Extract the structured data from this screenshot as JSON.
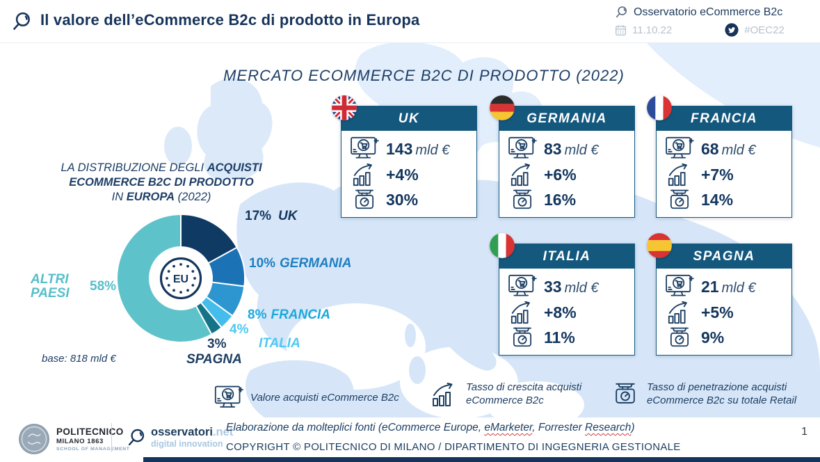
{
  "header": {
    "title": "Il valore dell’eCommerce B2c di prodotto in Europa",
    "brand": "Osservatorio eCommerce B2c",
    "date": "11.10.22",
    "hashtag": "#OEC22"
  },
  "main_title": "MERCATO ECOMMERCE B2C DI PRODOTTO (2022)",
  "distribution": {
    "title_l1_a": "LA DISTRIBUZIONE DEGLI ",
    "title_l1_b": "ACQUISTI",
    "title_l2": "ECOMMERCE B2C DI PRODOTTO",
    "title_l3_a": "IN ",
    "title_l3_b": "EUROPA",
    "title_l3_c": " (2022)",
    "center_label": "EU",
    "base_note": "base: 818 mld €"
  },
  "chart_data": {
    "type": "pie",
    "donut": true,
    "title": "LA DISTRIBUZIONE DEGLI ACQUISTI ECOMMERCE B2C DI PRODOTTO IN EUROPA (2022)",
    "base": "818 mld €",
    "unit": "%",
    "start_angle_deg_from_top_clockwise": 0,
    "categories": [
      "UK",
      "GERMANIA",
      "FRANCIA",
      "ITALIA",
      "SPAGNA",
      "ALTRI PAESI"
    ],
    "values": [
      17,
      10,
      8,
      4,
      3,
      58
    ],
    "colors": [
      "#0f3a64",
      "#1b72b4",
      "#2d95cf",
      "#45bdec",
      "#157387",
      "#5ec2ca"
    ],
    "label_colors": [
      "#13365e",
      "#1e7fc2",
      "#1da8dc",
      "#4fc8f2",
      "#1c3e63",
      "#56bfca"
    ],
    "legend_position": "around",
    "center_label": "EU"
  },
  "cards": [
    {
      "name": "UK",
      "flag": "uk",
      "value": "143",
      "unit": "mld €",
      "growth": "+4%",
      "penetration": "30%"
    },
    {
      "name": "GERMANIA",
      "flag": "de",
      "value": "83",
      "unit": "mld €",
      "growth": "+6%",
      "penetration": "16%"
    },
    {
      "name": "FRANCIA",
      "flag": "fr",
      "value": "68",
      "unit": "mld €",
      "growth": "+7%",
      "penetration": "14%"
    },
    {
      "name": "ITALIA",
      "flag": "it",
      "value": "33",
      "unit": "mld €",
      "growth": "+8%",
      "penetration": "11%"
    },
    {
      "name": "SPAGNA",
      "flag": "es",
      "value": "21",
      "unit": "mld €",
      "growth": "+5%",
      "penetration": "9%"
    }
  ],
  "legend": [
    {
      "icon": "ecommerce-value-icon",
      "lines": {
        "0": "Valore acquisti eCommerce B2c"
      }
    },
    {
      "icon": "growth-icon",
      "lines": {
        "0": "Tasso di crescita acquisti",
        "1": "eCommerce B2c"
      }
    },
    {
      "icon": "penetration-icon",
      "lines": {
        "0": "Tasso di penetrazione acquisti",
        "1": "eCommerce B2c su totale Retail"
      }
    }
  ],
  "footer": {
    "polimi_line1": "POLITECNICO",
    "polimi_line2": "MILANO 1863",
    "polimi_line3": "SCHOOL OF MANAGEMENT",
    "oss_name": "osservatori",
    "oss_net": ".net",
    "oss_sub": "digital innovation",
    "source_part1": "Elaborazione da molteplici fonti (eCommerce Europe, ",
    "source_em1": "eMarketer",
    "source_part2": ", Forrester ",
    "source_em2": "Research",
    "source_part3": ")",
    "copyright": "COPYRIGHT © POLITECNICO DI MILANO / DIPARTIMENTO DI INGEGNERIA GESTIONALE",
    "page": "1"
  },
  "colors": {
    "navy": "#16335b",
    "card_header": "#14587e",
    "map_land": "#d6e6f8",
    "map_land_light": "#e2eefb",
    "meta_gray": "#b6c2cf",
    "squiggle_red": "#d33a3a"
  }
}
